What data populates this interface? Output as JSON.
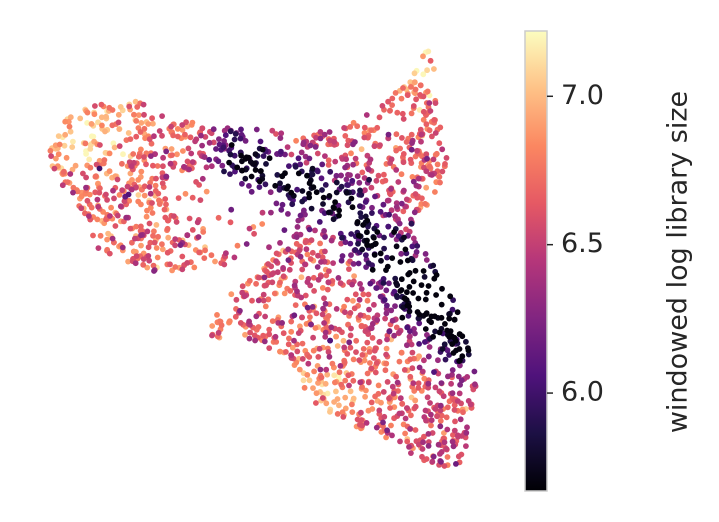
{
  "chart_data": {
    "type": "scatter",
    "title": "",
    "xlabel": "",
    "ylabel": "",
    "axes_visible": false,
    "point_count_approx": 2000,
    "color_by": "windowed log library size",
    "colormap": "magma",
    "colorbar": {
      "label": "windowed log library size",
      "range": [
        5.67,
        7.22
      ],
      "ticks": [
        6.0,
        6.5,
        7.0
      ],
      "tick_labels": [
        "6.0",
        "6.5",
        "7.0"
      ],
      "placement": "right"
    },
    "shape": "three-lobed point cloud: upper-left lobe (high values, light orange/yellow), upper-right arm (high values toward its tip), lower lobe (mixed orange/pink); dark purple/black band runs from the center toward the lower-right",
    "value_summary": {
      "min": 5.7,
      "max": 7.2
    }
  },
  "colors": {
    "magma_stops": [
      "#000004",
      "#1c1044",
      "#4f127b",
      "#812581",
      "#b5367a",
      "#e55964",
      "#fb8761",
      "#fec287",
      "#fcfdbf"
    ],
    "axis_frame": "#cccccc",
    "text": "#262626"
  }
}
